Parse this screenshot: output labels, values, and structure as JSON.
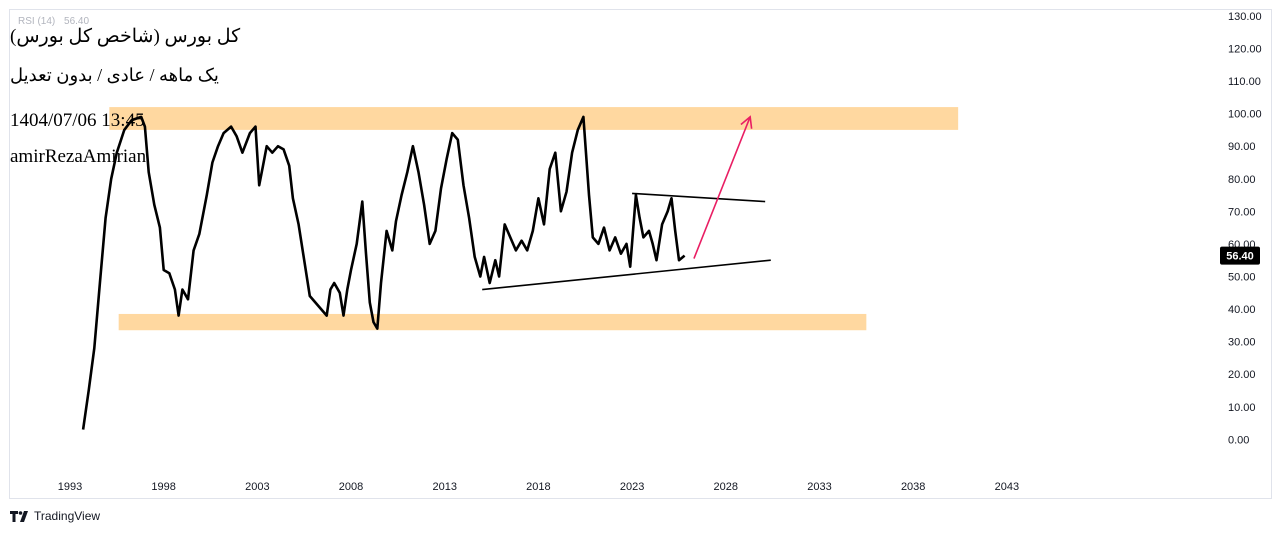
{
  "indicator": {
    "name": "RSI (14)",
    "value": "56.40"
  },
  "annotations": {
    "title": "کل بورس (شاخص کل بورس)",
    "subtitle": "یک ماهه / عادی / بدون تعدیل",
    "datetime": "1404/07/06 13:45",
    "author": "amirRezaAmirian"
  },
  "branding": {
    "logo_text": "TradingView"
  },
  "colors": {
    "line": "#000000",
    "zone": "#ffd8a0",
    "arrow": "#e91e63",
    "grid": "#e0e3eb"
  },
  "chart_data": {
    "type": "line",
    "series": [
      {
        "values": [
          [
            1993.7,
            3
          ],
          [
            1994.0,
            15
          ],
          [
            1994.3,
            28
          ],
          [
            1994.6,
            48
          ],
          [
            1994.9,
            68
          ],
          [
            1995.2,
            80
          ],
          [
            1995.5,
            88
          ],
          [
            1995.9,
            95
          ],
          [
            1996.3,
            98
          ],
          [
            1996.8,
            99
          ],
          [
            1997.0,
            96
          ],
          [
            1997.2,
            82
          ],
          [
            1997.5,
            72
          ],
          [
            1997.8,
            65
          ],
          [
            1998.0,
            52
          ],
          [
            1998.3,
            51
          ],
          [
            1998.6,
            46
          ],
          [
            1998.8,
            38
          ],
          [
            1999.0,
            46
          ],
          [
            1999.3,
            43
          ],
          [
            1999.6,
            58
          ],
          [
            1999.9,
            63
          ],
          [
            2000.3,
            75
          ],
          [
            2000.6,
            85
          ],
          [
            2000.9,
            90
          ],
          [
            2001.2,
            94
          ],
          [
            2001.6,
            96
          ],
          [
            2001.9,
            93
          ],
          [
            2002.2,
            88
          ],
          [
            2002.6,
            94
          ],
          [
            2002.9,
            96
          ],
          [
            2003.1,
            78
          ],
          [
            2003.3,
            84
          ],
          [
            2003.5,
            90
          ],
          [
            2003.8,
            88
          ],
          [
            2004.1,
            90
          ],
          [
            2004.4,
            89
          ],
          [
            2004.7,
            84
          ],
          [
            2004.9,
            74
          ],
          [
            2005.2,
            66
          ],
          [
            2005.5,
            55
          ],
          [
            2005.8,
            44
          ],
          [
            2006.1,
            42
          ],
          [
            2006.4,
            40
          ],
          [
            2006.7,
            38
          ],
          [
            2006.9,
            46
          ],
          [
            2007.1,
            48
          ],
          [
            2007.4,
            45
          ],
          [
            2007.6,
            38
          ],
          [
            2007.8,
            46
          ],
          [
            2008.0,
            52
          ],
          [
            2008.3,
            60
          ],
          [
            2008.6,
            73
          ],
          [
            2008.8,
            57
          ],
          [
            2009.0,
            42
          ],
          [
            2009.2,
            36
          ],
          [
            2009.4,
            34
          ],
          [
            2009.6,
            48
          ],
          [
            2009.9,
            64
          ],
          [
            2010.2,
            58
          ],
          [
            2010.4,
            67
          ],
          [
            2010.7,
            75
          ],
          [
            2011.0,
            82
          ],
          [
            2011.3,
            90
          ],
          [
            2011.6,
            82
          ],
          [
            2011.9,
            72
          ],
          [
            2012.2,
            60
          ],
          [
            2012.5,
            64
          ],
          [
            2012.8,
            77
          ],
          [
            2013.1,
            86
          ],
          [
            2013.4,
            94
          ],
          [
            2013.7,
            92
          ],
          [
            2014.0,
            78
          ],
          [
            2014.3,
            68
          ],
          [
            2014.6,
            56
          ],
          [
            2014.9,
            50
          ],
          [
            2015.1,
            56
          ],
          [
            2015.4,
            48
          ],
          [
            2015.7,
            55
          ],
          [
            2015.9,
            50
          ],
          [
            2016.2,
            66
          ],
          [
            2016.5,
            62
          ],
          [
            2016.8,
            58
          ],
          [
            2017.1,
            61
          ],
          [
            2017.4,
            58
          ],
          [
            2017.7,
            64
          ],
          [
            2018.0,
            74
          ],
          [
            2018.3,
            66
          ],
          [
            2018.6,
            83
          ],
          [
            2018.9,
            88
          ],
          [
            2019.2,
            70
          ],
          [
            2019.5,
            76
          ],
          [
            2019.8,
            88
          ],
          [
            2020.1,
            95
          ],
          [
            2020.4,
            99
          ],
          [
            2020.7,
            75
          ],
          [
            2020.9,
            62
          ],
          [
            2021.2,
            60
          ],
          [
            2021.5,
            65
          ],
          [
            2021.8,
            58
          ],
          [
            2022.1,
            62
          ],
          [
            2022.4,
            57
          ],
          [
            2022.7,
            60
          ],
          [
            2022.9,
            53
          ],
          [
            2023.2,
            75
          ],
          [
            2023.4,
            68
          ],
          [
            2023.6,
            62
          ],
          [
            2023.9,
            64
          ],
          [
            2024.1,
            60
          ],
          [
            2024.3,
            55
          ],
          [
            2024.6,
            66
          ],
          [
            2024.9,
            70
          ],
          [
            2025.1,
            74
          ],
          [
            2025.3,
            64
          ],
          [
            2025.5,
            55
          ],
          [
            2025.8,
            56.4
          ]
        ]
      }
    ],
    "xlim": [
      1989.8,
      2054
    ],
    "ylim": [
      -9.4,
      131.8
    ],
    "x_ticks": [
      "1993",
      "1998",
      "2003",
      "2008",
      "2013",
      "2018",
      "2023",
      "2028",
      "2033",
      "2038",
      "2043"
    ],
    "y_ticks": [
      "130.00",
      "120.00",
      "110.00",
      "100.00",
      "90.00",
      "80.00",
      "70.00",
      "60.00",
      "50.00",
      "40.00",
      "30.00",
      "20.00",
      "10.00",
      "0.00"
    ],
    "last_value_label": "56.40",
    "grid": false,
    "zones": [
      {
        "x_start": 1995.1,
        "x_end": 2040.4,
        "y_low": 95,
        "y_high": 102
      },
      {
        "x_start": 1995.6,
        "x_end": 2035.5,
        "y_low": 33.5,
        "y_high": 38.5
      }
    ],
    "trendlines": [
      {
        "x1": 2015.0,
        "y1": 46,
        "x2": 2030.4,
        "y2": 55
      },
      {
        "x1": 2023.0,
        "y1": 75.5,
        "x2": 2030.1,
        "y2": 73
      }
    ],
    "arrow": {
      "x1": 2026.3,
      "y1": 55.5,
      "x2": 2029.3,
      "y2": 99
    }
  }
}
